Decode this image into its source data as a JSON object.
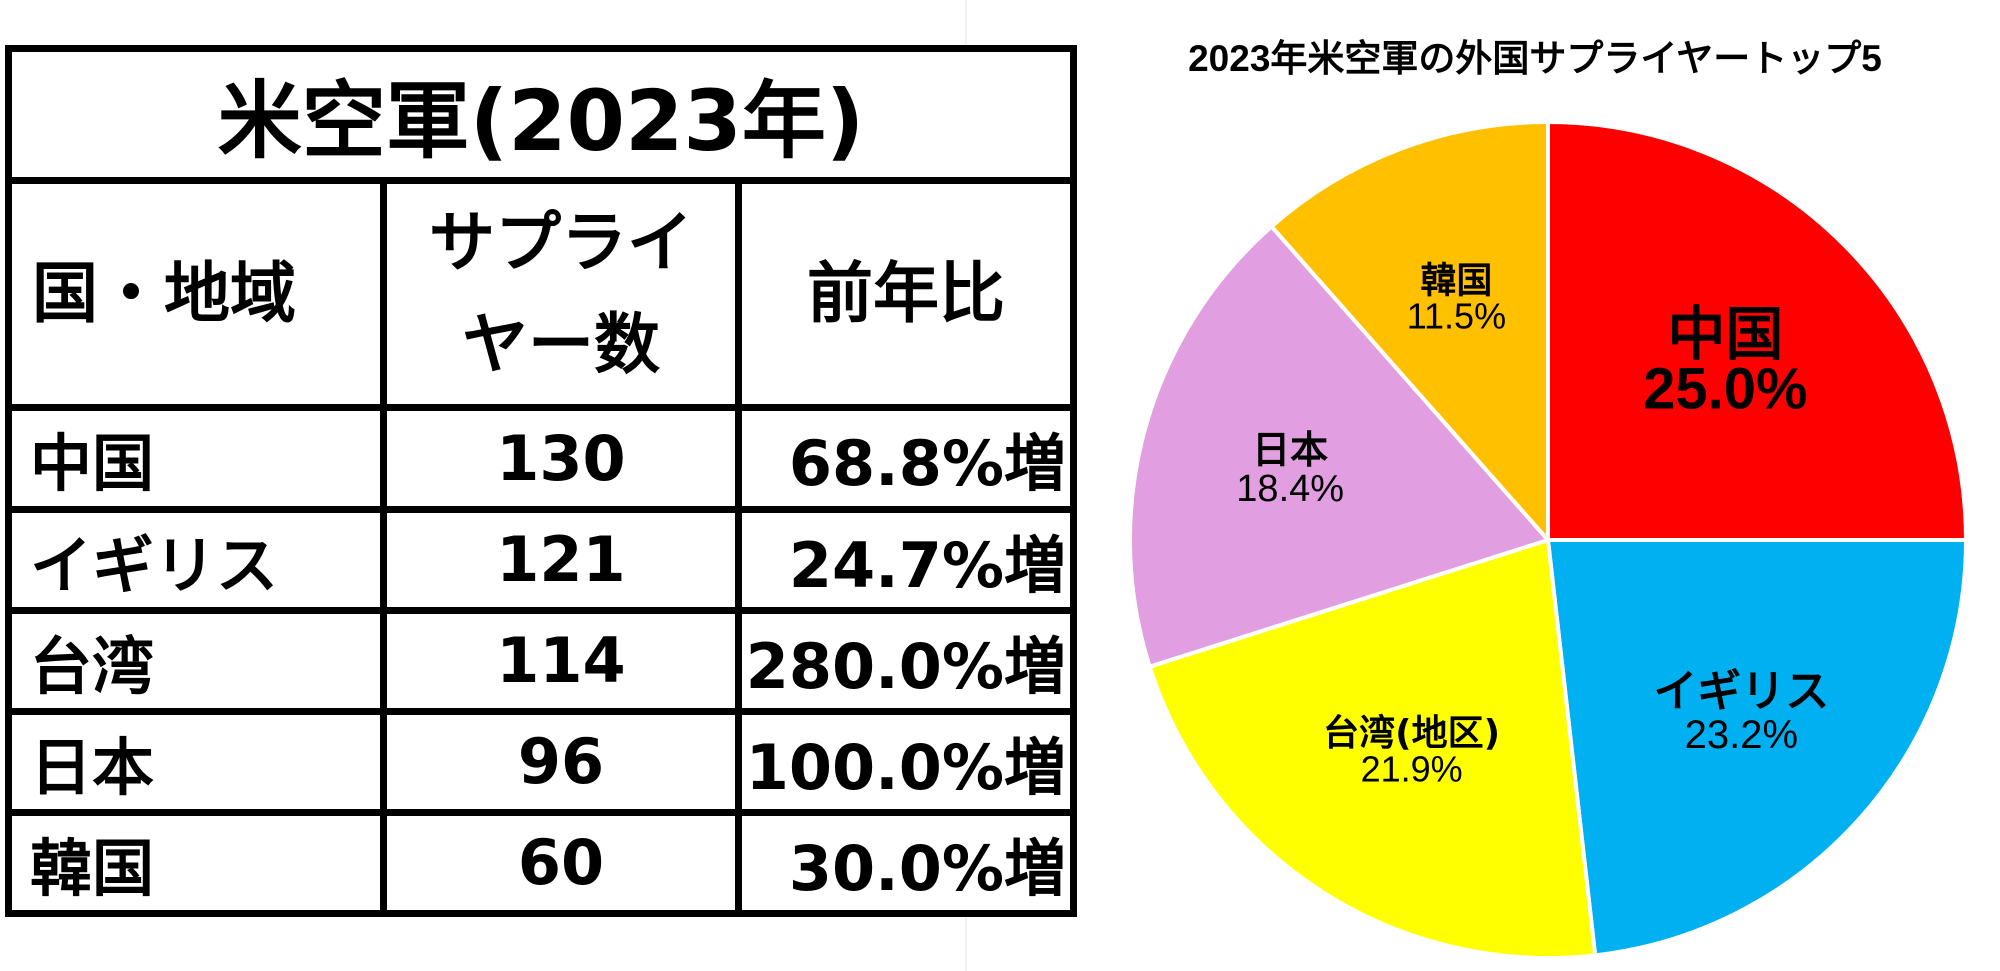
{
  "table": {
    "title": "米空軍(2023年)",
    "headers": {
      "country": "国・地域",
      "count_line1": "サプライ",
      "count_line2": "ヤー数",
      "yoy": "前年比"
    },
    "rows": [
      {
        "country": "中国",
        "count": "130",
        "yoy": "68.8%増"
      },
      {
        "country": "イギリス",
        "count": "121",
        "yoy": "24.7%増"
      },
      {
        "country": "台湾",
        "count": "114",
        "yoy": "280.0%増"
      },
      {
        "country": "日本",
        "count": "96",
        "yoy": "100.0%増"
      },
      {
        "country": "韓国",
        "count": "60",
        "yoy": "30.0%増"
      }
    ]
  },
  "chart_data": {
    "type": "pie",
    "title": "2023年米空軍の外国サプライヤートップ5",
    "slices": [
      {
        "label": "中国",
        "value": 25.0,
        "pct_label": "25.0%",
        "color": "#ff0000"
      },
      {
        "label": "イギリス",
        "value": 23.2,
        "pct_label": "23.2%",
        "color": "#00b0f0"
      },
      {
        "label": "台湾(地区)",
        "value": 21.9,
        "pct_label": "21.9%",
        "color": "#ffff00"
      },
      {
        "label": "日本",
        "value": 18.4,
        "pct_label": "18.4%",
        "color": "#e19ee0"
      },
      {
        "label": "韓国",
        "value": 11.5,
        "pct_label": "11.5%",
        "color": "#ffc000"
      }
    ],
    "start": "12 o'clock",
    "direction": "clockwise"
  }
}
